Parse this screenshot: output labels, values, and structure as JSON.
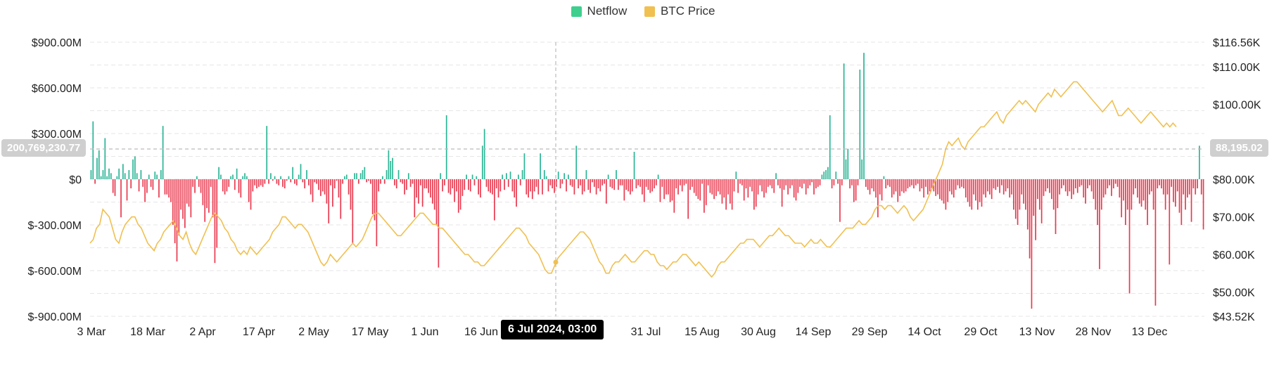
{
  "legend": {
    "netflow_label": "Netflow",
    "price_label": "BTC Price",
    "netflow_color": "#3ecf8e",
    "price_color": "#f0c050"
  },
  "crosshair": {
    "left_value": "200,769,230.77",
    "right_value": "88,195.02",
    "date_value": "6 Jul 2024, 03:00"
  },
  "chart_data": {
    "type": "bar+line",
    "x_tick_labels": [
      "3 Mar",
      "18 Mar",
      "2 Apr",
      "17 Apr",
      "2 May",
      "17 May",
      "1 Jun",
      "16 Jun",
      "31 Jul",
      "15 Aug",
      "30 Aug",
      "14 Sep",
      "29 Sep",
      "14 Oct",
      "29 Oct",
      "13 Nov",
      "28 Nov",
      "13 Dec"
    ],
    "left_axis": {
      "tick_labels": [
        "$900.00M",
        "$600.00M",
        "$300.00M",
        "$0",
        "$-300.00M",
        "$-600.00M",
        "$-900.00M"
      ],
      "ylim": [
        -900,
        900
      ],
      "unit": "M"
    },
    "right_axis": {
      "tick_labels": [
        "$116.56K",
        "$110.00K",
        "$100.00K",
        "$80.00K",
        "$70.00K",
        "$60.00K",
        "$50.00K",
        "$43.52K"
      ],
      "ylim": [
        43.52,
        116.56
      ],
      "unit": "K"
    },
    "x_range_days": [
      0,
      300
    ],
    "netflow_series": [
      60,
      380,
      -30,
      140,
      190,
      20,
      60,
      270,
      20,
      70,
      40,
      -90,
      -110,
      20,
      70,
      -250,
      100,
      40,
      -140,
      60,
      -60,
      130,
      150,
      40,
      -80,
      60,
      -50,
      -150,
      -90,
      30,
      -50,
      -70,
      50,
      30,
      -120,
      60,
      350,
      -100,
      -100,
      -120,
      -150,
      -300,
      -420,
      -540,
      -370,
      -200,
      -260,
      -320,
      -160,
      -180,
      -250,
      -50,
      -90,
      20,
      -50,
      -90,
      -170,
      -280,
      -190,
      -220,
      -50,
      -250,
      -550,
      -450,
      80,
      30,
      -80,
      -100,
      -80,
      -50,
      20,
      30,
      -70,
      70,
      -90,
      -120,
      20,
      40,
      20,
      -150,
      -200,
      -80,
      -40,
      -60,
      -50,
      -40,
      -50,
      -30,
      350,
      -30,
      40,
      -10,
      20,
      -30,
      -40,
      20,
      -50,
      -60,
      -10,
      20,
      -20,
      80,
      -30,
      -40,
      30,
      100,
      -20,
      -60,
      60,
      -40,
      -100,
      -150,
      -20,
      -30,
      -70,
      -110,
      -80,
      -100,
      -160,
      -290,
      -40,
      -180,
      -60,
      -10,
      -120,
      -260,
      -30,
      20,
      30,
      -100,
      -200,
      -420,
      40,
      40,
      -30,
      40,
      60,
      80,
      -20,
      -10,
      -30,
      -230,
      -270,
      -440,
      -80,
      -30,
      20,
      -30,
      60,
      190,
      120,
      140,
      -40,
      -60,
      60,
      -20,
      -30,
      -100,
      -70,
      40,
      -50,
      -30,
      -250,
      -120,
      -160,
      -40,
      -180,
      -60,
      -60,
      -90,
      -120,
      -160,
      -200,
      -300,
      -580,
      40,
      -80,
      -40,
      420,
      -90,
      -100,
      -60,
      -150,
      -80,
      -220,
      -200,
      -110,
      -70,
      30,
      -70,
      -80,
      30,
      -40,
      20,
      -100,
      -120,
      220,
      330,
      -50,
      -80,
      -90,
      -100,
      -270,
      -60,
      -120,
      -80,
      30,
      -70,
      40,
      -50,
      50,
      -80,
      -120,
      -180,
      30,
      -40,
      60,
      170,
      -100,
      -120,
      -80,
      -130,
      -80,
      -50,
      -100,
      170,
      -100,
      60,
      20,
      -80,
      -40,
      -60,
      -90,
      -50,
      50,
      -60,
      -30,
      40,
      -80,
      30,
      -40,
      -50,
      -100,
      220,
      -60,
      -40,
      -100,
      -80,
      60,
      -70,
      -90,
      -20,
      -50,
      -100,
      -60,
      -80,
      -40,
      -30,
      -160,
      30,
      -50,
      -60,
      -70,
      60,
      -70,
      -40,
      -40,
      -140,
      -70,
      -80,
      -100,
      -80,
      180,
      -60,
      -40,
      -50,
      -100,
      -150,
      -50,
      -70,
      -90,
      -80,
      -60,
      -40,
      30,
      -150,
      -50,
      -130,
      -100,
      -100,
      -150,
      -140,
      -220,
      -60,
      -100,
      -40,
      -80,
      -40,
      -30,
      -260,
      -70,
      -50,
      -90,
      -110,
      -130,
      -140,
      -30,
      -220,
      -170,
      -40,
      -90,
      -100,
      -130,
      -110,
      -80,
      -100,
      -160,
      -120,
      -200,
      -100,
      -160,
      -200,
      -80,
      50,
      -90,
      -30,
      -40,
      -140,
      -60,
      -120,
      -50,
      -80,
      -200,
      -180,
      -100,
      -40,
      -80,
      -120,
      -90,
      -50,
      -40,
      -60,
      -90,
      40,
      -40,
      -60,
      -180,
      -70,
      -40,
      -100,
      -60,
      -40,
      -120,
      -140,
      -90,
      -50,
      -60,
      -30,
      -100,
      -60,
      -40,
      -20,
      -100,
      -60,
      -50,
      -40,
      30,
      50,
      60,
      80,
      420,
      -60,
      -40,
      50,
      -30,
      -280,
      -40,
      760,
      130,
      200,
      -60,
      -40,
      -150,
      -140,
      -40,
      720,
      130,
      830,
      -50,
      -70,
      -100,
      -60,
      -80,
      -120,
      -250,
      -100,
      -140,
      20,
      -60,
      -40,
      -50,
      -120,
      -100,
      -80,
      -150,
      -110,
      -80,
      -90,
      -80,
      -60,
      -50,
      -40,
      -60,
      -40,
      -30,
      -80,
      -60,
      -120,
      -50,
      -100,
      -80,
      -60,
      -80,
      -110,
      -100,
      -130,
      -140,
      -160,
      -200,
      -150,
      -80,
      -100,
      -120,
      -70,
      -40,
      -60,
      -50,
      -60,
      -120,
      -150,
      -180,
      -200,
      -100,
      -140,
      -200,
      -150,
      -180,
      -100,
      -120,
      -80,
      -100,
      -130,
      -60,
      -70,
      -50,
      -90,
      -40,
      -100,
      -80,
      -60,
      -120,
      -100,
      -200,
      -260,
      -300,
      -200,
      -100,
      -160,
      -200,
      -330,
      -520,
      -850,
      -240,
      -400,
      -130,
      -200,
      -290,
      -110,
      -80,
      -60,
      -90,
      -130,
      -200,
      -360,
      -190,
      -100,
      -60,
      -40,
      -80,
      -110,
      -80,
      -130,
      -100,
      -60,
      -90,
      -50,
      -40,
      -120,
      -160,
      -60,
      -40,
      -80,
      -130,
      -200,
      -300,
      -590,
      -200,
      -120,
      -100,
      -60,
      -40,
      -110,
      -60,
      -30,
      -50,
      -120,
      -250,
      -140,
      -300,
      -200,
      -750,
      -200,
      -100,
      -60,
      -120,
      -160,
      -180,
      -140,
      -200,
      -300,
      -100,
      -80,
      -200,
      -830,
      -60,
      -40,
      -60,
      -100,
      -200,
      -100,
      -560,
      -50,
      -150,
      -180,
      -80,
      -220,
      -300,
      -100,
      -200,
      -120,
      -100,
      -280,
      -60,
      -100,
      -60,
      220,
      -100,
      -330
    ],
    "price_series": [
      63,
      64,
      67,
      68,
      72,
      71,
      70,
      67,
      64,
      63,
      66,
      68,
      69,
      70,
      70,
      68,
      67,
      65,
      63,
      62,
      61,
      63,
      64,
      66,
      67,
      68,
      69,
      67,
      65,
      64,
      66,
      63,
      61,
      60,
      62,
      64,
      66,
      68,
      70,
      71,
      70,
      69,
      67,
      66,
      64,
      63,
      61,
      60,
      61,
      60,
      62,
      61,
      60,
      61,
      62,
      63,
      64,
      66,
      67,
      68,
      70,
      70,
      69,
      68,
      67,
      68,
      68,
      67,
      66,
      64,
      62,
      60,
      58,
      57,
      58,
      60,
      59,
      58,
      59,
      60,
      61,
      62,
      63,
      62,
      63,
      64,
      66,
      68,
      70,
      71,
      71,
      70,
      69,
      68,
      67,
      66,
      65,
      65,
      66,
      67,
      68,
      69,
      70,
      71,
      71,
      70,
      69,
      68,
      68,
      67,
      67,
      66,
      65,
      64,
      63,
      62,
      61,
      60,
      60,
      59,
      58,
      58,
      57,
      57,
      58,
      59,
      60,
      61,
      62,
      63,
      64,
      65,
      66,
      67,
      67,
      66,
      65,
      63,
      62,
      61,
      60,
      58,
      56,
      55,
      55,
      57,
      59,
      60,
      61,
      62,
      63,
      64,
      65,
      66,
      66,
      65,
      64,
      62,
      60,
      58,
      57,
      55,
      55,
      57,
      58,
      58,
      59,
      60,
      59,
      58,
      58,
      59,
      60,
      61,
      61,
      60,
      60,
      58,
      57,
      57,
      56,
      57,
      58,
      58,
      59,
      60,
      60,
      59,
      58,
      57,
      58,
      57,
      56,
      55,
      54,
      55,
      57,
      58,
      58,
      59,
      60,
      61,
      62,
      63,
      63,
      64,
      64,
      64,
      63,
      62,
      63,
      64,
      65,
      65,
      66,
      67,
      66,
      65,
      65,
      64,
      63,
      63,
      63,
      62,
      63,
      64,
      63,
      63,
      64,
      63,
      62,
      62,
      63,
      64,
      65,
      66,
      67,
      67,
      67,
      68,
      69,
      68,
      68,
      69,
      70,
      72,
      73,
      73,
      72,
      73,
      73,
      72,
      71,
      72,
      73,
      72,
      70,
      69,
      70,
      71,
      72,
      74,
      76,
      78,
      80,
      82,
      84,
      88,
      90,
      89,
      90,
      91,
      89,
      88,
      90,
      91,
      92,
      93,
      94,
      94,
      95,
      96,
      97,
      98,
      96,
      95,
      97,
      98,
      99,
      100,
      101,
      100,
      101,
      100,
      99,
      98,
      100,
      101,
      102,
      103,
      102,
      104,
      103,
      102,
      103,
      104,
      105,
      106,
      106,
      105,
      104,
      103,
      102,
      101,
      100,
      99,
      98,
      99,
      100,
      101,
      99,
      97,
      97,
      98,
      99,
      98,
      97,
      96,
      95,
      96,
      97,
      98,
      97,
      96,
      95,
      94,
      95,
      94,
      95,
      94
    ]
  }
}
